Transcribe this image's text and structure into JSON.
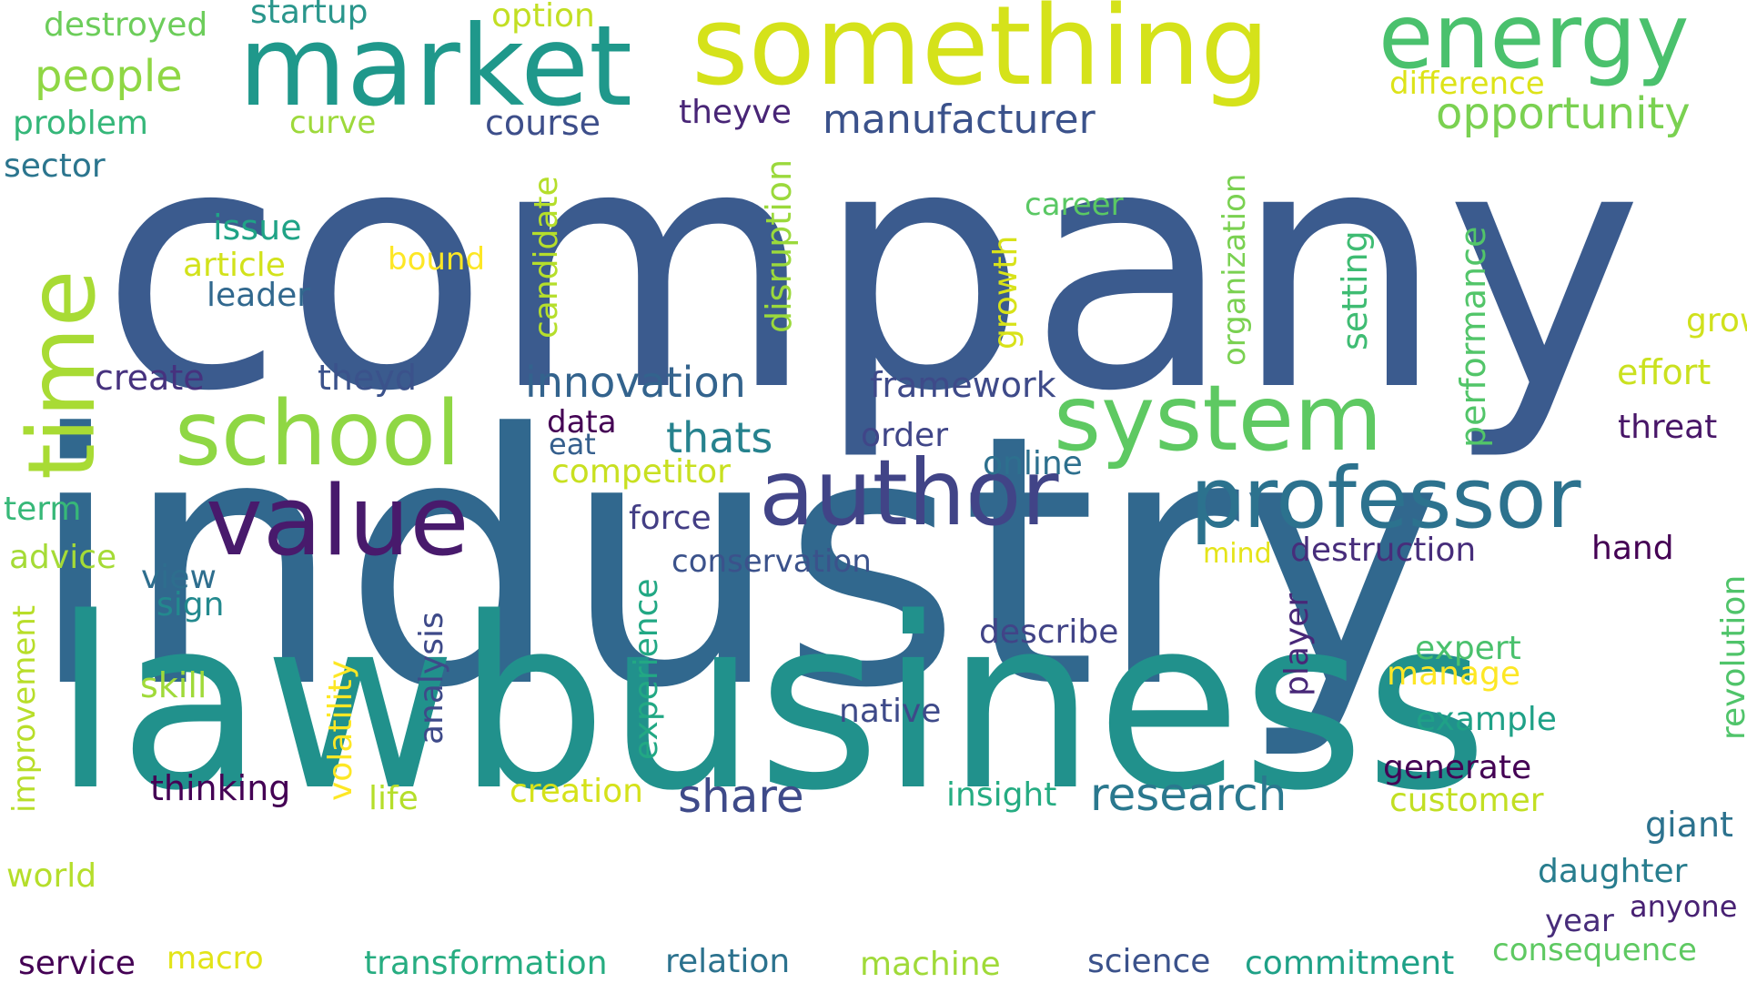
{
  "words": [
    {
      "key": "company",
      "text": "company",
      "color": "#3b5b8e"
    },
    {
      "key": "industry",
      "text": "industry",
      "color": "#31688e"
    },
    {
      "key": "lawbusiness",
      "text": "lawbusiness",
      "color": "#21918c"
    },
    {
      "key": "something",
      "text": "something",
      "color": "#d5e21a"
    },
    {
      "key": "market",
      "text": "market",
      "color": "#1f988b"
    },
    {
      "key": "energy",
      "text": "energy",
      "color": "#4ac16d"
    },
    {
      "key": "author",
      "text": "author",
      "color": "#414487"
    },
    {
      "key": "professor",
      "text": "professor",
      "color": "#2c728e"
    },
    {
      "key": "value",
      "text": "value",
      "color": "#481a6c"
    },
    {
      "key": "system",
      "text": "system",
      "color": "#5ec962"
    },
    {
      "key": "school",
      "text": "school",
      "color": "#8fd744"
    },
    {
      "key": "time",
      "text": "time",
      "color": "#a8db34"
    },
    {
      "key": "opportunity",
      "text": "opportunity",
      "color": "#7ad151"
    },
    {
      "key": "manufacturer",
      "text": "manufacturer",
      "color": "#3b528b"
    },
    {
      "key": "innovation",
      "text": "innovation",
      "color": "#33638d"
    },
    {
      "key": "research",
      "text": "research",
      "color": "#2a788e"
    },
    {
      "key": "share",
      "text": "share",
      "color": "#3e4a89"
    },
    {
      "key": "thats",
      "text": "thats",
      "color": "#26828e"
    },
    {
      "key": "people",
      "text": "people",
      "color": "#8fd744"
    },
    {
      "key": "destroyed",
      "text": "destroyed",
      "color": "#6ccd5a"
    },
    {
      "key": "startup",
      "text": "startup",
      "color": "#2a968c"
    },
    {
      "key": "option",
      "text": "option",
      "color": "#c2df23"
    },
    {
      "key": "difference",
      "text": "difference",
      "color": "#dde318"
    },
    {
      "key": "problem",
      "text": "problem",
      "color": "#35b779"
    },
    {
      "key": "curve",
      "text": "curve",
      "color": "#9dd93b"
    },
    {
      "key": "course",
      "text": "course",
      "color": "#3d4e8a"
    },
    {
      "key": "theyve",
      "text": "theyve",
      "color": "#482576"
    },
    {
      "key": "sector",
      "text": "sector",
      "color": "#2b758e"
    },
    {
      "key": "career",
      "text": "career",
      "color": "#5ac864"
    },
    {
      "key": "issue",
      "text": "issue",
      "color": "#20a386"
    },
    {
      "key": "article",
      "text": "article",
      "color": "#d2e21b"
    },
    {
      "key": "bound",
      "text": "bound",
      "color": "#fde725"
    },
    {
      "key": "leader",
      "text": "leader",
      "color": "#31688e"
    },
    {
      "key": "candidate",
      "text": "candidate",
      "color": "#b5de2b"
    },
    {
      "key": "disruption",
      "text": "disruption",
      "color": "#9bd93c"
    },
    {
      "key": "growth",
      "text": "growth",
      "color": "#d8e219"
    },
    {
      "key": "organization",
      "text": "organization",
      "color": "#7ad151"
    },
    {
      "key": "setting",
      "text": "setting",
      "color": "#3fbc73"
    },
    {
      "key": "performance",
      "text": "performance",
      "color": "#52c569"
    },
    {
      "key": "grow",
      "text": "grow",
      "color": "#d0e11c"
    },
    {
      "key": "effort",
      "text": "effort",
      "color": "#cae11f"
    },
    {
      "key": "create",
      "text": "create",
      "color": "#46327e"
    },
    {
      "key": "theyd",
      "text": "theyd",
      "color": "#3b528b"
    },
    {
      "key": "framework",
      "text": "framework",
      "color": "#3e4a89"
    },
    {
      "key": "data",
      "text": "data",
      "color": "#440154"
    },
    {
      "key": "eat",
      "text": "eat",
      "color": "#355f8d"
    },
    {
      "key": "order",
      "text": "order",
      "color": "#404688"
    },
    {
      "key": "online",
      "text": "online",
      "color": "#2d708e"
    },
    {
      "key": "threat",
      "text": "threat",
      "color": "#481668"
    },
    {
      "key": "competitor",
      "text": "competitor",
      "color": "#c8e020"
    },
    {
      "key": "term",
      "text": "term",
      "color": "#37b878"
    },
    {
      "key": "force",
      "text": "force",
      "color": "#433e85"
    },
    {
      "key": "mind",
      "text": "mind",
      "color": "#e5e419"
    },
    {
      "key": "destruction",
      "text": "destruction",
      "color": "#472d7b"
    },
    {
      "key": "hand",
      "text": "hand",
      "color": "#440154"
    },
    {
      "key": "advice",
      "text": "advice",
      "color": "#a5db36"
    },
    {
      "key": "conservation",
      "text": "conservation",
      "color": "#3b528b"
    },
    {
      "key": "view",
      "text": "view",
      "color": "#2e6e8e"
    },
    {
      "key": "sign",
      "text": "sign",
      "color": "#23898e"
    },
    {
      "key": "describe",
      "text": "describe",
      "color": "#414487"
    },
    {
      "key": "revolution",
      "text": "revolution",
      "color": "#50c46a"
    },
    {
      "key": "improvement",
      "text": "improvement",
      "color": "#b8de29"
    },
    {
      "key": "volatility",
      "text": "volatility",
      "color": "#fde725"
    },
    {
      "key": "analysis",
      "text": "analysis",
      "color": "#3e4a89"
    },
    {
      "key": "experience",
      "text": "experience",
      "color": "#22a884"
    },
    {
      "key": "player",
      "text": "player",
      "color": "#482878"
    },
    {
      "key": "expert",
      "text": "expert",
      "color": "#4ac16d"
    },
    {
      "key": "manage",
      "text": "manage",
      "color": "#fde725"
    },
    {
      "key": "skill",
      "text": "skill",
      "color": "#a0da39"
    },
    {
      "key": "native",
      "text": "native",
      "color": "#3e4a89"
    },
    {
      "key": "example",
      "text": "example",
      "color": "#1fa187"
    },
    {
      "key": "generate",
      "text": "generate",
      "color": "#440154"
    },
    {
      "key": "thinking",
      "text": "thinking",
      "color": "#440154"
    },
    {
      "key": "life",
      "text": "life",
      "color": "#b5de2b"
    },
    {
      "key": "creation",
      "text": "creation",
      "color": "#d5e21a"
    },
    {
      "key": "insight",
      "text": "insight",
      "color": "#25ac82"
    },
    {
      "key": "customer",
      "text": "customer",
      "color": "#c2df23"
    },
    {
      "key": "giant",
      "text": "giant",
      "color": "#2c728e"
    },
    {
      "key": "world",
      "text": "world",
      "color": "#b5de2b"
    },
    {
      "key": "daughter",
      "text": "daughter",
      "color": "#287d8e"
    },
    {
      "key": "anyone",
      "text": "anyone",
      "color": "#482173"
    },
    {
      "key": "year",
      "text": "year",
      "color": "#472c7a"
    },
    {
      "key": "macro",
      "text": "macro",
      "color": "#e2e418"
    },
    {
      "key": "service",
      "text": "service",
      "color": "#440154"
    },
    {
      "key": "transformation",
      "text": "transformation",
      "color": "#27ad81"
    },
    {
      "key": "relation",
      "text": "relation",
      "color": "#2c728e"
    },
    {
      "key": "machine",
      "text": "machine",
      "color": "#a0da39"
    },
    {
      "key": "science",
      "text": "science",
      "color": "#3b528b"
    },
    {
      "key": "commitment",
      "text": "commitment",
      "color": "#1fa187"
    },
    {
      "key": "consequence",
      "text": "consequence",
      "color": "#5ec962"
    }
  ]
}
